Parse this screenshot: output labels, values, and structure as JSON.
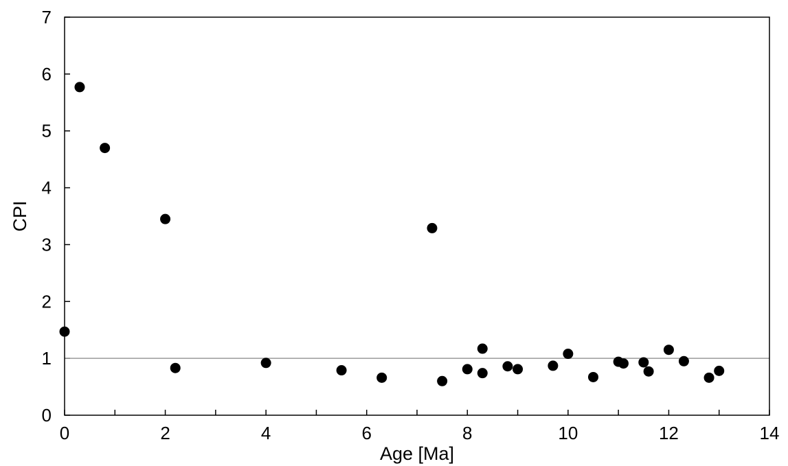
{
  "chart_data": {
    "type": "scatter",
    "title": "",
    "xlabel": "Age [Ma]",
    "ylabel": "CPI",
    "xlim": [
      0,
      14
    ],
    "ylim": [
      0,
      7
    ],
    "x_ticks": [
      "0",
      "2",
      "4",
      "6",
      "8",
      "10",
      "12",
      "14"
    ],
    "y_ticks": [
      "0",
      "1",
      "2",
      "3",
      "4",
      "5",
      "6",
      "7"
    ],
    "grid": false,
    "reference_line_y": 1,
    "marker_color": "#000000",
    "reference_line_color": "#999999",
    "points": [
      [
        0.0,
        1.47
      ],
      [
        0.3,
        5.77
      ],
      [
        0.8,
        4.7
      ],
      [
        2.0,
        3.45
      ],
      [
        2.2,
        0.83
      ],
      [
        4.0,
        0.92
      ],
      [
        5.5,
        0.79
      ],
      [
        6.3,
        0.66
      ],
      [
        7.3,
        3.29
      ],
      [
        7.5,
        0.6
      ],
      [
        8.0,
        0.81
      ],
      [
        8.3,
        1.17
      ],
      [
        8.3,
        0.74
      ],
      [
        8.8,
        0.86
      ],
      [
        9.0,
        0.81
      ],
      [
        9.7,
        0.87
      ],
      [
        10.0,
        1.08
      ],
      [
        10.5,
        0.67
      ],
      [
        11.0,
        0.94
      ],
      [
        11.1,
        0.91
      ],
      [
        11.5,
        0.93
      ],
      [
        11.6,
        0.77
      ],
      [
        12.0,
        1.15
      ],
      [
        12.3,
        0.95
      ],
      [
        12.8,
        0.66
      ],
      [
        13.0,
        0.78
      ]
    ]
  }
}
